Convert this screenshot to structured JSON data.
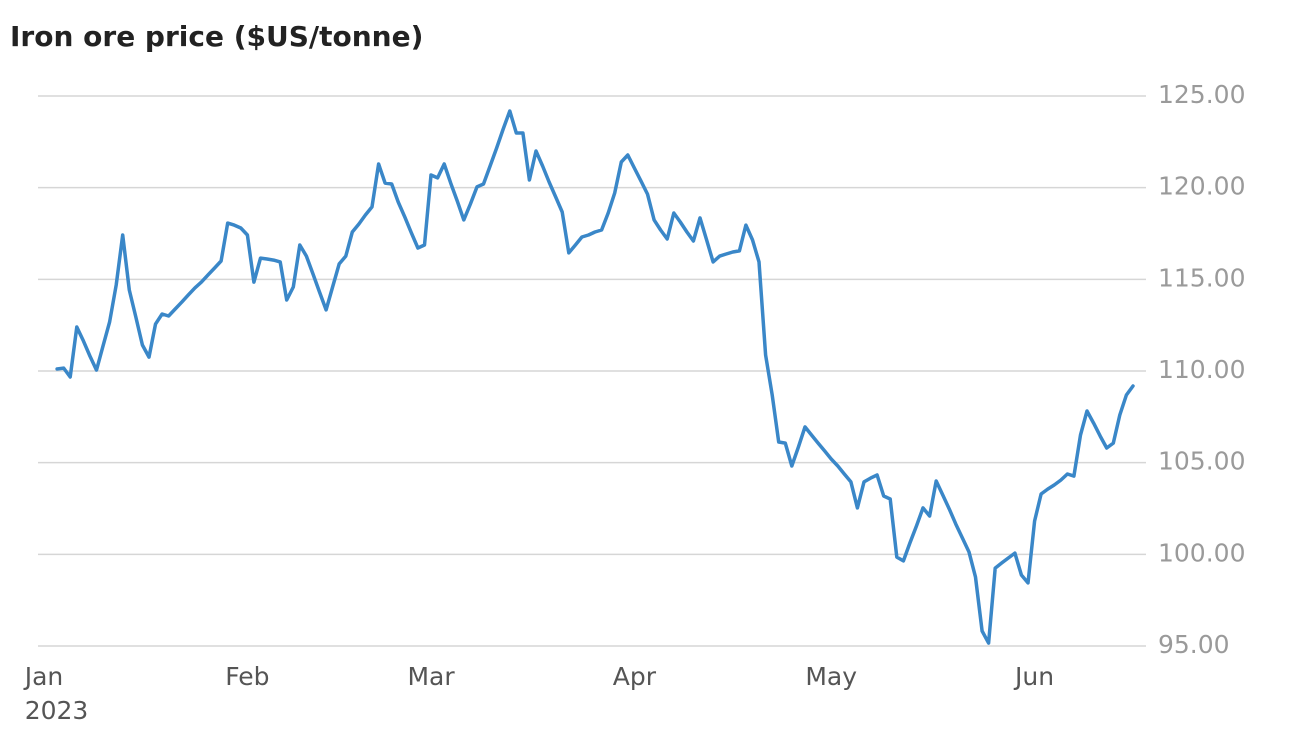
{
  "chart_data": {
    "type": "line",
    "title": "Iron ore price ($US/tonne)",
    "categories": [
      "Jan\n2023",
      null,
      null,
      null,
      null,
      null,
      null,
      null,
      null,
      null,
      null,
      null,
      null,
      null,
      null,
      null,
      null,
      null,
      null,
      null,
      null,
      null,
      null,
      null,
      null,
      null,
      null,
      null,
      null,
      null,
      null,
      "Feb",
      null,
      null,
      null,
      null,
      null,
      null,
      null,
      null,
      null,
      null,
      null,
      null,
      null,
      null,
      null,
      null,
      null,
      null,
      null,
      null,
      null,
      null,
      null,
      null,
      null,
      null,
      null,
      "Mar",
      null,
      null,
      null,
      null,
      null,
      null,
      null,
      null,
      null,
      null,
      null,
      null,
      null,
      null,
      null,
      null,
      null,
      null,
      null,
      null,
      null,
      null,
      null,
      null,
      null,
      null,
      null,
      null,
      null,
      null,
      "Apr",
      null,
      null,
      null,
      null,
      null,
      null,
      null,
      null,
      null,
      null,
      null,
      null,
      null,
      null,
      null,
      null,
      null,
      null,
      null,
      null,
      null,
      null,
      null,
      null,
      null,
      null,
      null,
      null,
      null,
      "May",
      null,
      null,
      null,
      null,
      null,
      null,
      null,
      null,
      null,
      null,
      null,
      null,
      null,
      null,
      null,
      null,
      null,
      null,
      null,
      null,
      null,
      null,
      null,
      null,
      null,
      null,
      null,
      null,
      null,
      null,
      "Jun",
      null,
      null,
      null,
      null,
      null,
      null,
      null,
      null,
      null,
      null,
      null,
      null,
      null,
      null,
      null
    ],
    "series": [
      {
        "name": "Iron ore price",
        "color": "#3a87c8",
        "values": [
          null,
          null,
          110.11,
          110.16,
          109.67,
          112.4,
          111.64,
          110.82,
          110.05,
          111.36,
          112.67,
          114.69,
          117.42,
          114.42,
          112.95,
          111.42,
          110.76,
          112.56,
          113.11,
          113.0,
          113.38,
          113.76,
          114.15,
          114.53,
          114.85,
          115.24,
          115.62,
          116.0,
          118.07,
          117.96,
          117.8,
          117.42,
          114.85,
          116.16,
          116.11,
          116.05,
          115.95,
          113.87,
          114.58,
          116.87,
          116.27,
          115.29,
          114.31,
          113.33,
          114.58,
          115.84,
          116.27,
          117.58,
          118.02,
          118.51,
          118.95,
          121.29,
          120.25,
          120.2,
          119.22,
          118.4,
          117.53,
          116.71,
          116.87,
          120.69,
          120.53,
          121.29,
          120.25,
          119.27,
          118.24,
          119.11,
          120.04,
          120.2,
          121.18,
          122.16,
          123.2,
          124.18,
          122.98,
          122.98,
          120.42,
          122.0,
          121.18,
          120.31,
          119.49,
          118.67,
          116.44,
          116.87,
          117.31,
          117.42,
          117.58,
          117.69,
          118.62,
          119.71,
          121.4,
          121.78,
          121.07,
          120.36,
          119.65,
          118.24,
          117.69,
          117.2,
          118.62,
          118.13,
          117.58,
          117.09,
          118.35,
          117.15,
          115.95,
          116.27,
          116.38,
          116.49,
          116.55,
          117.96,
          117.15,
          115.95,
          110.87,
          108.69,
          106.13,
          106.07,
          104.82,
          105.85,
          106.95,
          106.51,
          106.07,
          105.64,
          105.2,
          104.82,
          104.38,
          103.95,
          102.53,
          103.95,
          104.16,
          104.33,
          103.18,
          103.02,
          99.85,
          99.64,
          100.62,
          101.55,
          102.53,
          102.09,
          104.0,
          103.24,
          102.47,
          101.65,
          100.89,
          100.13,
          98.76,
          95.82,
          95.16,
          99.25,
          99.53,
          99.8,
          100.07,
          98.87,
          98.44,
          101.82,
          103.29,
          103.56,
          103.78,
          104.05,
          104.38,
          104.27,
          106.51,
          107.82,
          107.16,
          106.45,
          105.8,
          106.07,
          107.6,
          108.69,
          109.18
        ]
      }
    ],
    "ylim": [
      95,
      125
    ],
    "yticks": [
      {
        "value": 95,
        "label": "95.00"
      },
      {
        "value": 100,
        "label": "100.00"
      },
      {
        "value": 105,
        "label": "105.00"
      },
      {
        "value": 110,
        "label": "110.00"
      },
      {
        "value": 115,
        "label": "115.00"
      },
      {
        "value": 120,
        "label": "120.00"
      },
      {
        "value": 125,
        "label": "125.00"
      }
    ],
    "grid": true
  }
}
